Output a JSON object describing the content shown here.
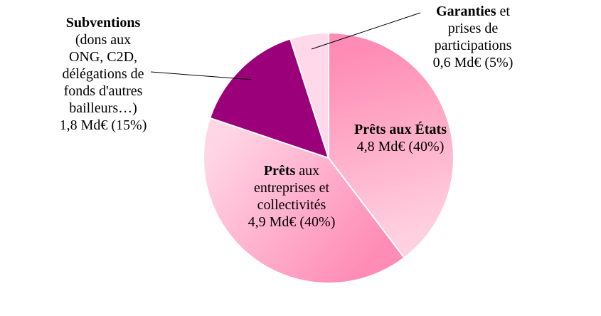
{
  "chart_data": {
    "type": "pie",
    "slices": [
      {
        "name_bold": "Prêts aux États",
        "name_rest": "",
        "value": 4.8,
        "value_label": "4,8 Md€ (40%)",
        "color_light": "#ffd0e0",
        "color_dark": "#ff8cb4"
      },
      {
        "name_bold": "Prêts",
        "name_rest": " aux entreprises et collectivités",
        "value": 4.9,
        "value_label": "4,9 Md€ (40%)",
        "color_light": "#ffd6e6",
        "color_dark": "#ff8cb4"
      },
      {
        "name_bold": "Subventions",
        "name_rest": " (dons aux ONG, C2D, délégations de fonds d'autres bailleurs…)",
        "value": 1.8,
        "value_label": "1,8 Md€ (15%)",
        "color_light": "#9b007a",
        "color_dark": "#9b007a"
      },
      {
        "name_bold": "Garanties",
        "name_rest": " et prises de participations",
        "value": 0.6,
        "value_label": "0,6 Md€ (5%)",
        "color_light": "#ffd8ea",
        "color_dark": "#ffd8ea"
      }
    ]
  }
}
